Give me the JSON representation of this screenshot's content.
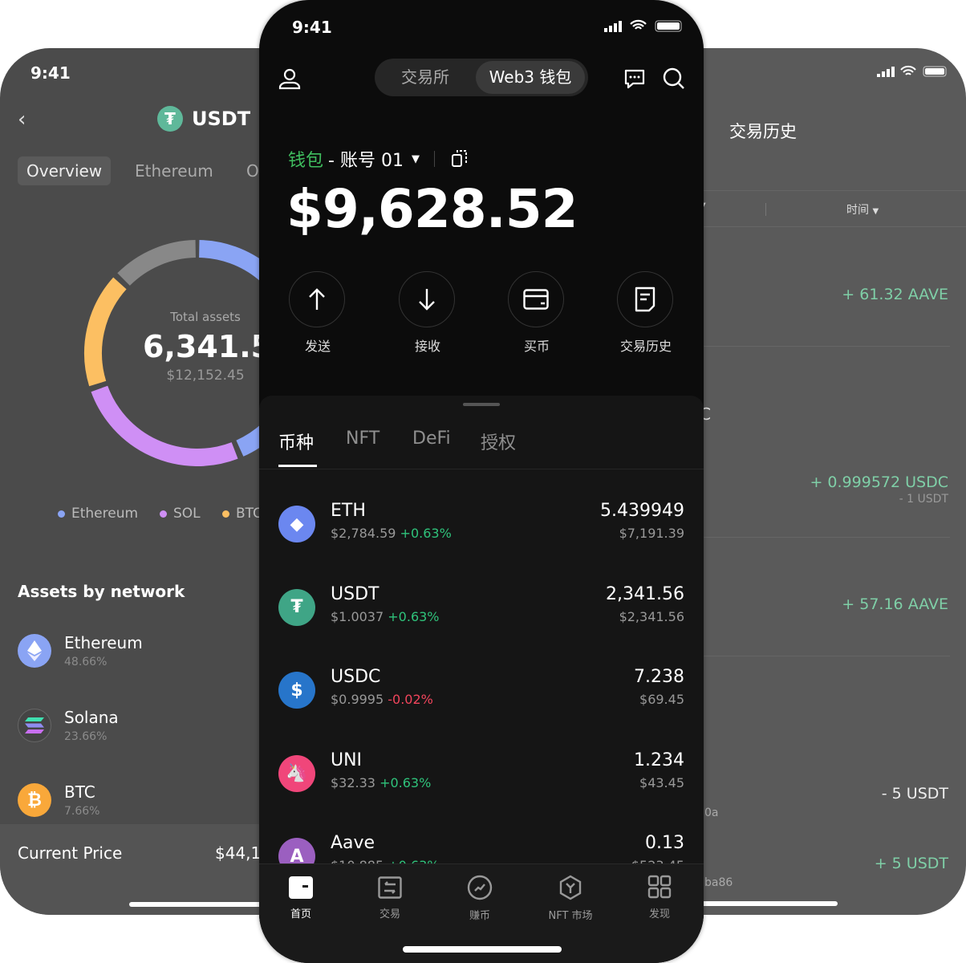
{
  "left_phone": {
    "time": "9:41",
    "title": "USDT",
    "tabs": [
      "Overview",
      "Ethereum",
      "O"
    ],
    "total_label": "Total assets",
    "total_value": "6,341.56",
    "total_usd": "$12,152.45",
    "donut": [
      {
        "name": "Ethereum",
        "color": "#8aa4f4",
        "share": 43
      },
      {
        "name": "gap-blue",
        "color": "#8aa4f4",
        "share": 0
      },
      {
        "name": "SOL",
        "color": "#cf8ff5",
        "share": 26
      },
      {
        "name": "BTC",
        "color": "#fcbf62",
        "share": 17
      },
      {
        "name": "Other",
        "color": "#888888",
        "share": 13
      }
    ],
    "legend": [
      {
        "label": "Ethereum",
        "color": "#8aa4f4"
      },
      {
        "label": "SOL",
        "color": "#cf8ff5"
      },
      {
        "label": "BTC",
        "color": "#fcbf62"
      }
    ],
    "section_title": "Assets by network",
    "networks": [
      {
        "name": "Ethereum",
        "pct": "48.66%"
      },
      {
        "name": "Solana",
        "pct": "23.66%"
      },
      {
        "name": "BTC",
        "pct": "7.66%"
      }
    ],
    "current_price_label": "Current Price",
    "current_price": "$44,12"
  },
  "right_phone": {
    "title": "交易历史",
    "filter": "时间",
    "items": [
      {
        "amount": "+ 61.32 AAVE"
      },
      {
        "amount": "+ 0.999572 USDC",
        "sub": "- 1 USDT"
      },
      {
        "amount": "+ 57.16 AAVE"
      },
      {
        "amount": "- 5 USDT",
        "addr": "0a"
      },
      {
        "amount": "+ 5 USDT",
        "addr": "ba86"
      }
    ],
    "edge_text": [
      "C"
    ]
  },
  "center_phone": {
    "time": "9:41",
    "segments": [
      "交易所",
      "Web3 钱包"
    ],
    "wallet_label": "钱包",
    "account": "- 账号 01",
    "balance": "$9,628.52",
    "actions": [
      "发送",
      "接收",
      "买币",
      "交易历史"
    ],
    "asset_tabs": [
      "币种",
      "NFT",
      "DeFi",
      "授权"
    ],
    "assets": [
      {
        "symbol": "ETH",
        "price": "$2,784.59",
        "change": "+0.63%",
        "dir": "up",
        "amount": "5.439949",
        "value": "$7,191.39",
        "color": "#6b87f0"
      },
      {
        "symbol": "USDT",
        "price": "$1.0037",
        "change": "+0.63%",
        "dir": "up",
        "amount": "2,341.56",
        "value": "$2,341.56",
        "color": "#3fa586"
      },
      {
        "symbol": "USDC",
        "price": "$0.9995",
        "change": "-0.02%",
        "dir": "down",
        "amount": "7.238",
        "value": "$69.45",
        "color": "#2775ca"
      },
      {
        "symbol": "UNI",
        "price": "$32.33",
        "change": "+0.63%",
        "dir": "up",
        "amount": "1.234",
        "value": "$43.45",
        "color": "#f0467a"
      },
      {
        "symbol": "Aave",
        "price": "$10.885",
        "change": "+0.63%",
        "dir": "up",
        "amount": "0.13",
        "value": "$523.45",
        "color": "#9b5fc0"
      }
    ],
    "nav": [
      "首页",
      "交易",
      "赚币",
      "NFT 市场",
      "发现"
    ]
  },
  "colors": {
    "accent_green": "#2fc37b",
    "negative_red": "#f1455c"
  }
}
